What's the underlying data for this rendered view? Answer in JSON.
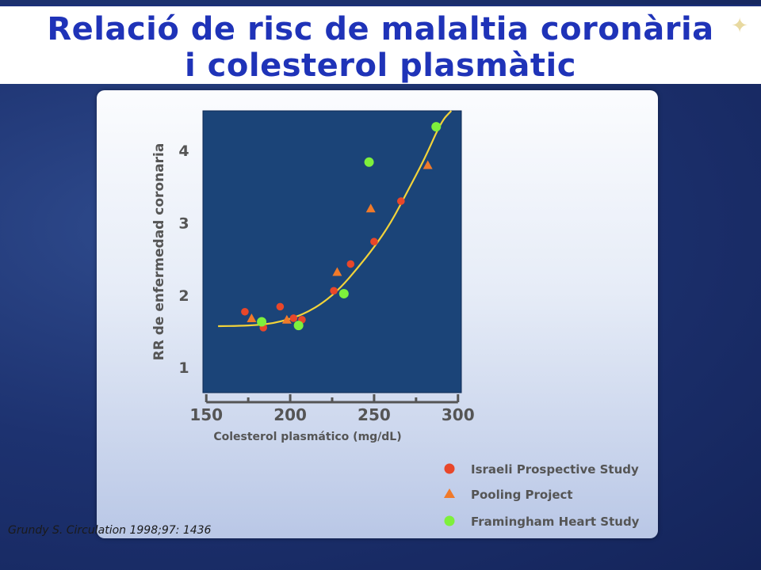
{
  "slide": {
    "title_line1": "Relació de risc de malaltia  coronària",
    "title_line2": "i colesterol plasmàtic",
    "citation": "Grundy S. Circulation 1998;97: 1436"
  },
  "colors": {
    "title": "#1f33b8",
    "plot_background": "#1b4478",
    "curve": "#f2d33a",
    "israeli": "#e8472a",
    "pooling": "#f07a2a",
    "framingham": "#7ef03c"
  },
  "chart_data": {
    "type": "scatter",
    "xlabel": "Colesterol plasmático (mg/dL)",
    "ylabel": "RR de enfermedad coronaria",
    "xlim": [
      148,
      302
    ],
    "ylim": [
      0.65,
      4.55
    ],
    "x_ticks": [
      150,
      200,
      250,
      300
    ],
    "y_ticks": [
      1,
      2,
      3,
      4
    ],
    "legend_position": "bottom-right",
    "series": [
      {
        "name": "Israeli Prospective Study",
        "marker": "circle",
        "points": [
          {
            "x": 173,
            "y": 1.77
          },
          {
            "x": 184,
            "y": 1.55
          },
          {
            "x": 194,
            "y": 1.84
          },
          {
            "x": 202,
            "y": 1.68
          },
          {
            "x": 207,
            "y": 1.66
          },
          {
            "x": 226,
            "y": 2.06
          },
          {
            "x": 236,
            "y": 2.43
          },
          {
            "x": 250,
            "y": 2.74
          },
          {
            "x": 266,
            "y": 3.3
          }
        ]
      },
      {
        "name": "Pooling Project",
        "marker": "triangle",
        "points": [
          {
            "x": 177,
            "y": 1.68
          },
          {
            "x": 198,
            "y": 1.66
          },
          {
            "x": 228,
            "y": 2.32
          },
          {
            "x": 248,
            "y": 3.2
          },
          {
            "x": 282,
            "y": 3.8
          }
        ]
      },
      {
        "name": "Framingham Heart Study",
        "marker": "circle",
        "points": [
          {
            "x": 183,
            "y": 1.63
          },
          {
            "x": 205,
            "y": 1.58
          },
          {
            "x": 232,
            "y": 2.02
          },
          {
            "x": 247,
            "y": 3.84
          },
          {
            "x": 287,
            "y": 4.33
          }
        ]
      }
    ],
    "fitted_curve": [
      {
        "x": 157,
        "y": 1.57
      },
      {
        "x": 170,
        "y": 1.575
      },
      {
        "x": 180,
        "y": 1.585
      },
      {
        "x": 190,
        "y": 1.61
      },
      {
        "x": 200,
        "y": 1.67
      },
      {
        "x": 210,
        "y": 1.76
      },
      {
        "x": 220,
        "y": 1.9
      },
      {
        "x": 230,
        "y": 2.1
      },
      {
        "x": 240,
        "y": 2.37
      },
      {
        "x": 250,
        "y": 2.66
      },
      {
        "x": 260,
        "y": 3.0
      },
      {
        "x": 270,
        "y": 3.44
      },
      {
        "x": 280,
        "y": 3.88
      },
      {
        "x": 290,
        "y": 4.4
      },
      {
        "x": 296,
        "y": 4.55
      }
    ]
  }
}
